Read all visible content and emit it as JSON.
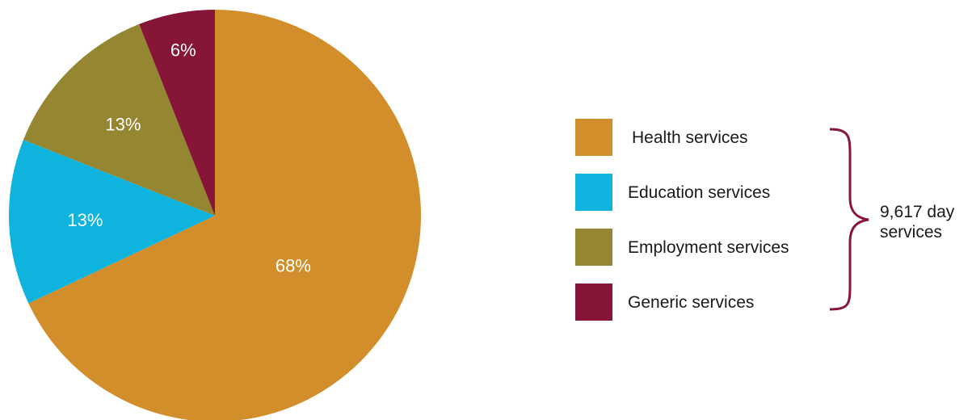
{
  "chart_data": {
    "type": "pie",
    "title": "",
    "slices": [
      {
        "label": "Health services",
        "value": 68,
        "value_label": "68%",
        "color": "#D28E2A"
      },
      {
        "label": "Education services",
        "value": 13,
        "value_label": "13%",
        "color": "#0EB4DE"
      },
      {
        "label": "Employment services",
        "value": 13,
        "value_label": "13%",
        "color": "#958732"
      },
      {
        "label": "Generic services",
        "value": 6,
        "value_label": "6%",
        "color": "#871538"
      }
    ],
    "start": "12 o'clock",
    "direction": "clockwise",
    "legend_position": "right",
    "bracket_note": {
      "lines": [
        "9,617 day",
        "services"
      ],
      "color": "#871538"
    }
  }
}
